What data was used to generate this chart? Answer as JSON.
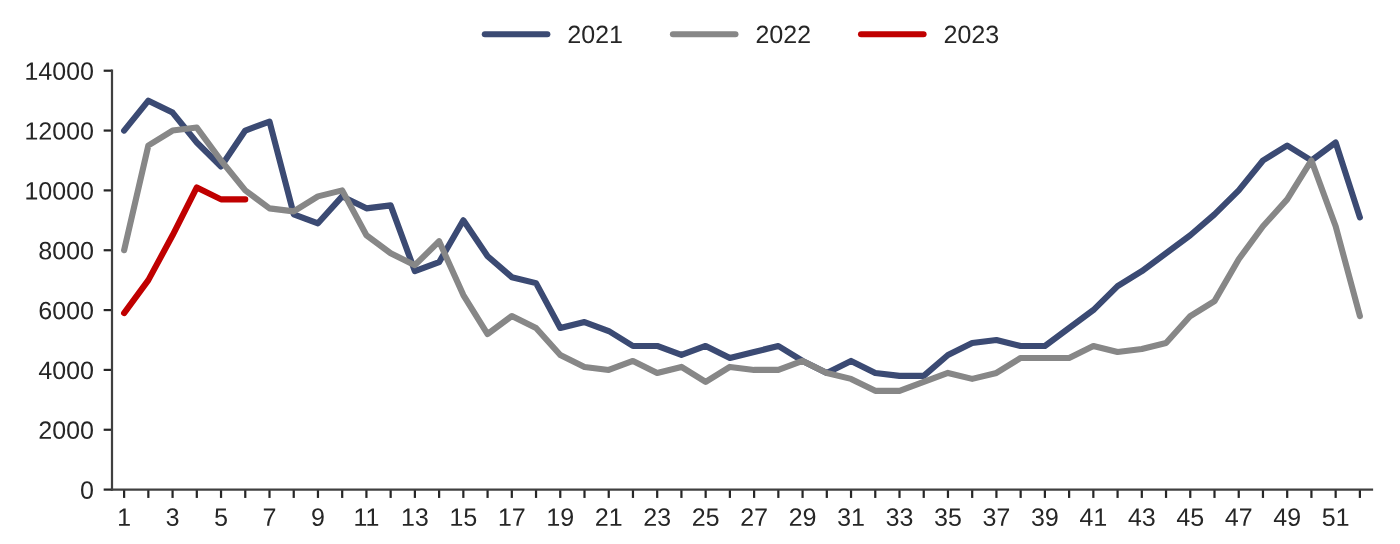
{
  "chart_data": {
    "type": "line",
    "categories": [
      "1",
      null,
      "3",
      null,
      "5",
      null,
      "7",
      null,
      "9",
      null,
      "11",
      null,
      "13",
      null,
      "15",
      null,
      "17",
      null,
      "19",
      null,
      "21",
      null,
      "23",
      null,
      "25",
      null,
      "27",
      null,
      "29",
      null,
      "31",
      null,
      "33",
      null,
      "35",
      null,
      "37",
      null,
      "39",
      null,
      "41",
      null,
      "43",
      null,
      "45",
      null,
      "47",
      null,
      "49",
      null,
      "51",
      null
    ],
    "series": [
      {
        "name": "2021",
        "color": "#3b4a73",
        "values": [
          12000,
          13000,
          12600,
          11600,
          10800,
          12000,
          12300,
          9200,
          8900,
          9800,
          9400,
          9500,
          7300,
          7600,
          9000,
          7800,
          7100,
          6900,
          5400,
          5600,
          5300,
          4800,
          4800,
          4500,
          4800,
          4400,
          4600,
          4800,
          4300,
          3900,
          4300,
          3900,
          3800,
          3800,
          4500,
          4900,
          5000,
          4800,
          4800,
          5400,
          6000,
          6800,
          7300,
          7900,
          8500,
          9200,
          10000,
          11000,
          11500,
          11000,
          11600,
          9100
        ]
      },
      {
        "name": "2022",
        "color": "#878787",
        "values": [
          8000,
          11500,
          12000,
          12100,
          11000,
          10000,
          9400,
          9300,
          9800,
          10000,
          8500,
          7900,
          7500,
          8300,
          6500,
          5200,
          5800,
          5400,
          4500,
          4100,
          4000,
          4300,
          3900,
          4100,
          3600,
          4100,
          4000,
          4000,
          4300,
          3900,
          3700,
          3300,
          3300,
          3600,
          3900,
          3700,
          3900,
          4400,
          4400,
          4400,
          4800,
          4600,
          4700,
          4900,
          5800,
          6300,
          7700,
          8800,
          9700,
          11000,
          8800,
          5800
        ]
      },
      {
        "name": "2023",
        "color": "#c00000",
        "values": [
          5900,
          7000,
          8500,
          10100,
          9700,
          9700,
          null,
          null,
          null,
          null,
          null,
          null,
          null,
          null,
          null,
          null,
          null,
          null,
          null,
          null,
          null,
          null,
          null,
          null,
          null,
          null,
          null,
          null,
          null,
          null,
          null,
          null,
          null,
          null,
          null,
          null,
          null,
          null,
          null,
          null,
          null,
          null,
          null,
          null,
          null,
          null,
          null,
          null,
          null,
          null,
          null,
          null
        ]
      }
    ],
    "ylim": [
      0,
      14000
    ],
    "yticks": [
      0,
      2000,
      4000,
      6000,
      8000,
      10000,
      12000,
      14000
    ],
    "grid": false,
    "legend": "top",
    "line_style": "solid",
    "marker": "none"
  }
}
